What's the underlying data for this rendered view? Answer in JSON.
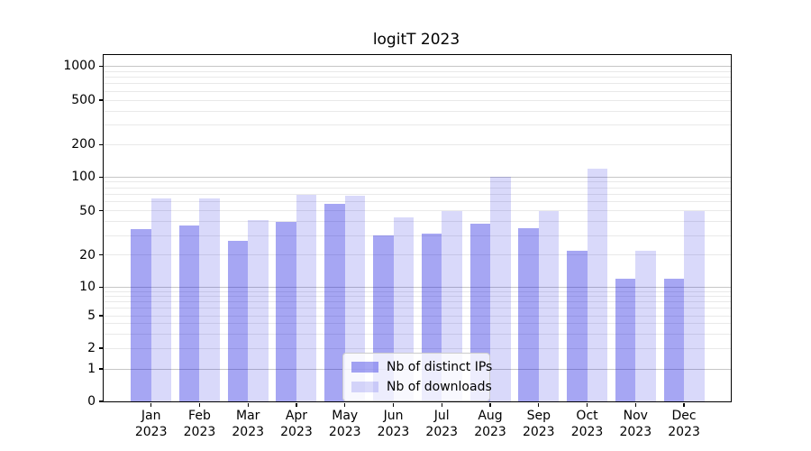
{
  "title": "logitT 2023",
  "colors": {
    "ips_bar": "rgba(0,0,222,0.35)",
    "downloads_bar": "rgba(0,0,222,0.15)",
    "grid_major": "#c6c6c6",
    "grid_minor": "#e9e9e9",
    "spine": "#000000"
  },
  "legend": {
    "items": [
      {
        "label": "Nb of distinct IPs"
      },
      {
        "label": "Nb of downloads"
      }
    ]
  },
  "chart_data": {
    "type": "bar",
    "title": "logitT 2023",
    "categories": [
      "Jan",
      "Feb",
      "Mar",
      "Apr",
      "May",
      "Jun",
      "Jul",
      "Aug",
      "Sep",
      "Oct",
      "Nov",
      "Dec"
    ],
    "category_year": "2023",
    "series": [
      {
        "name": "Nb of distinct IPs",
        "color": "rgba(0,0,222,0.35)",
        "values": [
          34,
          37,
          27,
          40,
          58,
          30,
          31,
          38,
          35,
          22,
          12,
          12
        ]
      },
      {
        "name": "Nb of downloads",
        "color": "rgba(0,0,222,0.15)",
        "values": [
          64,
          65,
          41,
          70,
          68,
          44,
          50,
          100,
          50,
          120,
          22,
          50
        ]
      }
    ],
    "yscale": "symlog",
    "y_ticks": [
      0,
      1,
      2,
      5,
      10,
      20,
      50,
      100,
      200,
      500,
      1000
    ],
    "ylim": [
      0,
      1400
    ],
    "grid": true,
    "legend_position": "lower center",
    "xlabel": "",
    "ylabel": ""
  }
}
